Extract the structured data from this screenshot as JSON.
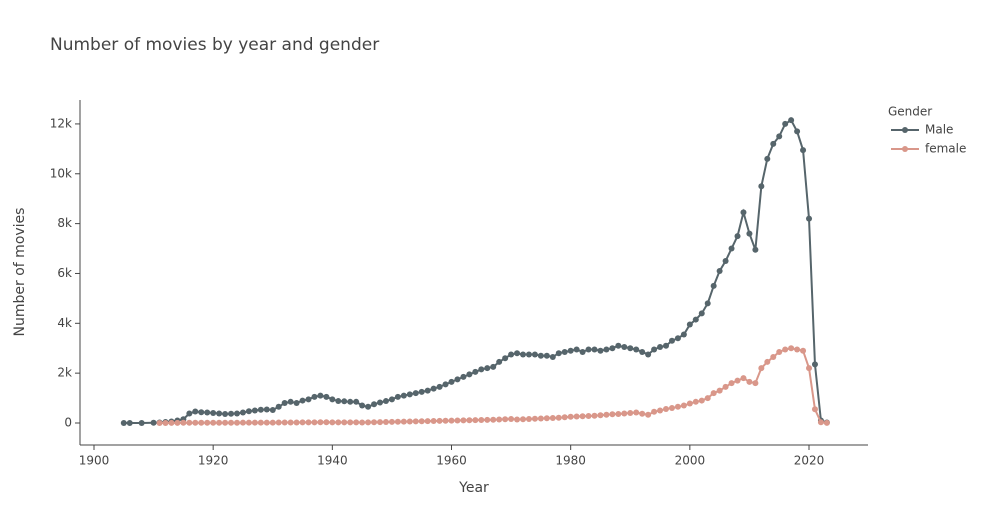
{
  "chart_data": {
    "type": "line",
    "title": "Number of movies by year and gender",
    "x_label": "Year",
    "y_label": "Number of movies",
    "legend_title": "Gender",
    "legend_position": "right",
    "xlim": [
      1897.65,
      2029.9
    ],
    "xticks": [
      1900,
      1920,
      1940,
      1960,
      1980,
      2000,
      2020
    ],
    "ylim": [
      -883,
      12960
    ],
    "yticks": [
      0,
      {
        "value": 2000,
        "label": "2k"
      },
      {
        "value": 4000,
        "label": "4k"
      },
      {
        "value": 6000,
        "label": "6k"
      },
      {
        "value": 8000,
        "label": "8k"
      },
      {
        "value": 10000,
        "label": "10k"
      },
      {
        "value": 12000,
        "label": "12k"
      }
    ],
    "grid": false,
    "series": [
      {
        "name": "Male",
        "color": "#56656b",
        "x": [
          1905,
          1906,
          1908,
          1910,
          1911,
          1912,
          1913,
          1914,
          1915,
          1916,
          1917,
          1918,
          1919,
          1920,
          1921,
          1922,
          1923,
          1924,
          1925,
          1926,
          1927,
          1928,
          1929,
          1930,
          1931,
          1932,
          1933,
          1934,
          1935,
          1936,
          1937,
          1938,
          1939,
          1940,
          1941,
          1942,
          1943,
          1944,
          1945,
          1946,
          1947,
          1948,
          1949,
          1950,
          1951,
          1952,
          1953,
          1954,
          1955,
          1956,
          1957,
          1958,
          1959,
          1960,
          1961,
          1962,
          1963,
          1964,
          1965,
          1966,
          1967,
          1968,
          1969,
          1970,
          1971,
          1972,
          1973,
          1974,
          1975,
          1976,
          1977,
          1978,
          1979,
          1980,
          1981,
          1982,
          1983,
          1984,
          1985,
          1986,
          1987,
          1988,
          1989,
          1990,
          1991,
          1992,
          1993,
          1994,
          1995,
          1996,
          1997,
          1998,
          1999,
          2000,
          2001,
          2002,
          2003,
          2004,
          2005,
          2006,
          2007,
          2008,
          2009,
          2010,
          2011,
          2012,
          2013,
          2014,
          2015,
          2016,
          2017,
          2018,
          2019,
          2020,
          2021,
          2022,
          2023
        ],
        "values": [
          0,
          0,
          0,
          10,
          20,
          40,
          60,
          100,
          150,
          380,
          460,
          430,
          420,
          400,
          380,
          360,
          370,
          380,
          420,
          470,
          500,
          530,
          540,
          520,
          650,
          800,
          850,
          800,
          900,
          950,
          1050,
          1100,
          1050,
          950,
          880,
          870,
          850,
          850,
          700,
          650,
          750,
          820,
          880,
          950,
          1050,
          1100,
          1150,
          1200,
          1250,
          1300,
          1380,
          1450,
          1550,
          1650,
          1750,
          1850,
          1950,
          2050,
          2150,
          2200,
          2250,
          2450,
          2600,
          2750,
          2800,
          2750,
          2750,
          2750,
          2700,
          2700,
          2650,
          2800,
          2850,
          2900,
          2950,
          2850,
          2950,
          2950,
          2900,
          2950,
          3000,
          3100,
          3050,
          3000,
          2950,
          2850,
          2750,
          2950,
          3050,
          3100,
          3300,
          3400,
          3550,
          3950,
          4150,
          4400,
          4800,
          5500,
          6100,
          6500,
          7000,
          7500,
          8450,
          7600,
          6950,
          9500,
          10600,
          11200,
          11500,
          12000,
          12150,
          11700,
          10950,
          8200,
          2350,
          100,
          20
        ]
      },
      {
        "name": "female",
        "color": "#d9978a",
        "x": [
          1911,
          1912,
          1913,
          1914,
          1915,
          1916,
          1917,
          1918,
          1919,
          1920,
          1921,
          1922,
          1923,
          1924,
          1925,
          1926,
          1927,
          1928,
          1929,
          1930,
          1931,
          1932,
          1933,
          1934,
          1935,
          1936,
          1937,
          1938,
          1939,
          1940,
          1941,
          1942,
          1943,
          1944,
          1945,
          1946,
          1947,
          1948,
          1949,
          1950,
          1951,
          1952,
          1953,
          1954,
          1955,
          1956,
          1957,
          1958,
          1959,
          1960,
          1961,
          1962,
          1963,
          1964,
          1965,
          1966,
          1967,
          1968,
          1969,
          1970,
          1971,
          1972,
          1973,
          1974,
          1975,
          1976,
          1977,
          1978,
          1979,
          1980,
          1981,
          1982,
          1983,
          1984,
          1985,
          1986,
          1987,
          1988,
          1989,
          1990,
          1991,
          1992,
          1993,
          1994,
          1995,
          1996,
          1997,
          1998,
          1999,
          2000,
          2001,
          2002,
          2003,
          2004,
          2005,
          2006,
          2007,
          2008,
          2009,
          2010,
          2011,
          2012,
          2013,
          2014,
          2015,
          2016,
          2017,
          2018,
          2019,
          2020,
          2021,
          2022,
          2023
        ],
        "values": [
          0,
          0,
          5,
          5,
          10,
          10,
          10,
          10,
          10,
          10,
          10,
          10,
          10,
          10,
          15,
          15,
          15,
          15,
          15,
          15,
          20,
          20,
          20,
          20,
          25,
          25,
          25,
          30,
          30,
          25,
          25,
          25,
          25,
          25,
          20,
          25,
          30,
          35,
          40,
          45,
          50,
          55,
          60,
          65,
          70,
          75,
          80,
          85,
          90,
          95,
          100,
          105,
          110,
          115,
          120,
          125,
          130,
          140,
          150,
          160,
          140,
          150,
          160,
          170,
          180,
          190,
          200,
          210,
          230,
          250,
          260,
          270,
          280,
          290,
          310,
          330,
          350,
          360,
          380,
          400,
          420,
          370,
          330,
          450,
          500,
          560,
          600,
          650,
          700,
          780,
          850,
          900,
          1000,
          1200,
          1300,
          1450,
          1600,
          1700,
          1800,
          1650,
          1600,
          2200,
          2450,
          2650,
          2850,
          2950,
          3000,
          2950,
          2900,
          2200,
          550,
          30,
          5
        ]
      }
    ]
  }
}
